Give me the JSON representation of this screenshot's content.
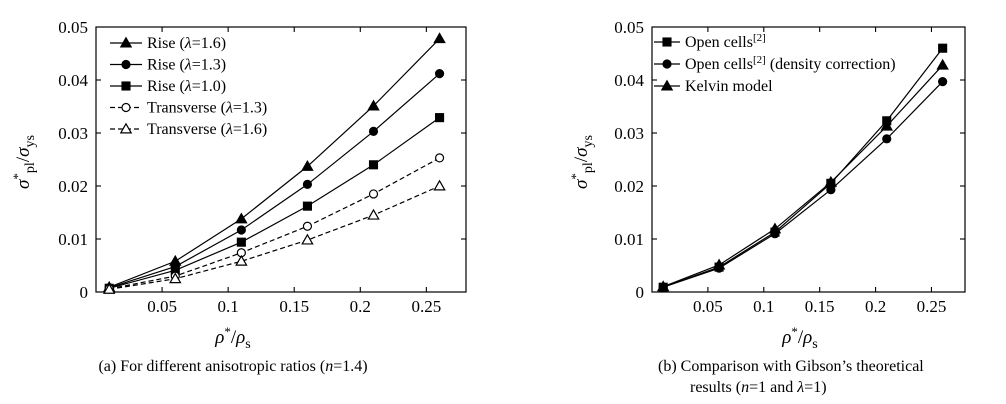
{
  "chart_data": [
    {
      "id": "a",
      "type": "line",
      "caption": "(a) For different anisotropic ratios (n=1.4)",
      "xlabel": "ρ*/ρs",
      "ylabel": "σ*pl/σys",
      "xlim": [
        0,
        0.28
      ],
      "ylim": [
        0,
        0.05
      ],
      "xticks": [
        0.05,
        0.1,
        0.15,
        0.2,
        0.25
      ],
      "xtick_labels": [
        "0.05",
        "0.1",
        "0.15",
        "0.2",
        "0.25"
      ],
      "yticks": [
        0,
        0.01,
        0.02,
        0.03,
        0.04,
        0.05
      ],
      "ytick_labels": [
        "0",
        "0.01",
        "0.02",
        "0.03",
        "0.04",
        "0.05"
      ],
      "legend_position": "top-left",
      "grid": false,
      "x": [
        0.01,
        0.06,
        0.11,
        0.16,
        0.21,
        0.26
      ],
      "series": [
        {
          "name": "Rise (λ=1.6)",
          "marker": "triangle",
          "filled": true,
          "dashed": false,
          "values": [
            0.0009,
            0.0058,
            0.0138,
            0.0237,
            0.0351,
            0.0478
          ]
        },
        {
          "name": "Rise (λ=1.3)",
          "marker": "circle",
          "filled": true,
          "dashed": false,
          "values": [
            0.0008,
            0.0048,
            0.0117,
            0.0203,
            0.0303,
            0.0412
          ]
        },
        {
          "name": "Rise (λ=1.0)",
          "marker": "square",
          "filled": true,
          "dashed": false,
          "values": [
            0.0007,
            0.0041,
            0.0094,
            0.0162,
            0.024,
            0.0329
          ]
        },
        {
          "name": "Transverse (λ=1.3)",
          "marker": "circle",
          "filled": false,
          "dashed": true,
          "values": [
            0.0006,
            0.003,
            0.0074,
            0.0124,
            0.0185,
            0.0253
          ]
        },
        {
          "name": "Transverse (λ=1.6)",
          "marker": "triangle",
          "filled": false,
          "dashed": true,
          "values": [
            0.0005,
            0.0025,
            0.0058,
            0.0098,
            0.0145,
            0.02
          ]
        }
      ]
    },
    {
      "id": "b",
      "type": "line",
      "caption": "(b) Comparison with Gibson’s theoretical results (n=1 and λ=1)",
      "xlabel": "ρ*/ρs",
      "ylabel": "σ*pl/σys",
      "xlim": [
        0,
        0.28
      ],
      "ylim": [
        0,
        0.05
      ],
      "xticks": [
        0.05,
        0.1,
        0.15,
        0.2,
        0.25
      ],
      "xtick_labels": [
        "0.05",
        "0.1",
        "0.15",
        "0.2",
        "0.25"
      ],
      "yticks": [
        0,
        0.01,
        0.02,
        0.03,
        0.04,
        0.05
      ],
      "ytick_labels": [
        "0",
        "0.01",
        "0.02",
        "0.03",
        "0.04",
        "0.05"
      ],
      "legend_position": "top-left",
      "grid": false,
      "x": [
        0.01,
        0.06,
        0.11,
        0.16,
        0.21,
        0.26
      ],
      "series": [
        {
          "name": "Open cells[2]",
          "marker": "square",
          "filled": true,
          "dashed": false,
          "values": [
            0.0009,
            0.0047,
            0.0113,
            0.0205,
            0.0323,
            0.046
          ]
        },
        {
          "name": "Open cells[2] (density correction)",
          "marker": "circle",
          "filled": true,
          "dashed": false,
          "values": [
            0.0009,
            0.0045,
            0.011,
            0.0193,
            0.0289,
            0.0397
          ]
        },
        {
          "name": "Kelvin model",
          "marker": "triangle",
          "filled": true,
          "dashed": false,
          "values": [
            0.001,
            0.0051,
            0.0119,
            0.0207,
            0.0313,
            0.0428
          ]
        }
      ]
    }
  ]
}
